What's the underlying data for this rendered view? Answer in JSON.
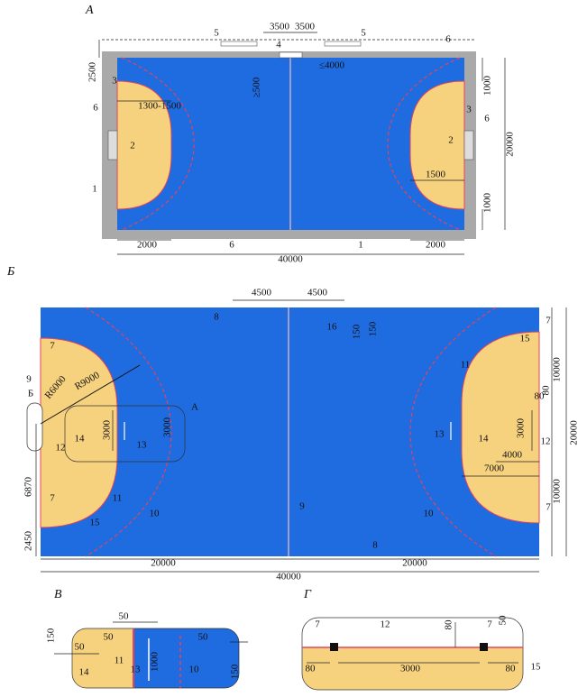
{
  "panels": [
    {
      "label": "А",
      "notes": [
        "5",
        "3500",
        "3500",
        "4",
        "5",
        "6",
        "2500",
        "≥500",
        "≤4000",
        "3",
        "6",
        "1300-1500",
        "2",
        "1",
        "1000",
        "20000",
        "3",
        "6",
        "2",
        "1500",
        "1000",
        "2000",
        "6",
        "1",
        "2000",
        "40000"
      ]
    },
    {
      "label": "Б",
      "notes": [
        "4500",
        "4500",
        "8",
        "16",
        "150",
        "150",
        "7",
        "10000",
        "20000",
        "15",
        "11",
        "80",
        "80",
        "3000",
        "12",
        "13",
        "14",
        "4000",
        "7000",
        "10000",
        "7",
        "10",
        "8",
        "7",
        "9",
        "R6000",
        "R9000",
        "Б",
        "А",
        "3000",
        "3000",
        "14",
        "13",
        "12",
        "6870",
        "7",
        "11",
        "15",
        "10",
        "9",
        "2450",
        "20000",
        "20000",
        "40000"
      ]
    },
    {
      "label": "В",
      "notes": [
        "50",
        "150",
        "50",
        "50",
        "50",
        "14",
        "11",
        "13",
        "1000",
        "10",
        "150"
      ]
    },
    {
      "label": "Г",
      "notes": [
        "7",
        "12",
        "80",
        "7",
        "50",
        "80",
        "3000",
        "80",
        "15"
      ]
    }
  ]
}
